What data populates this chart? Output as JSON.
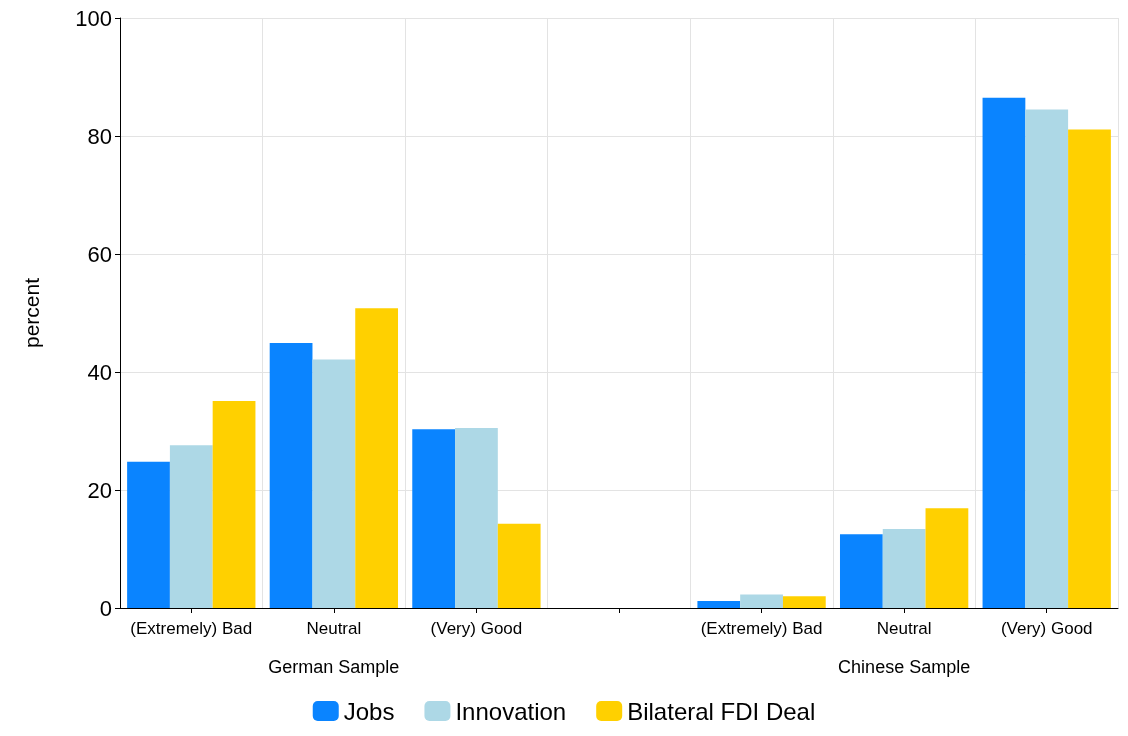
{
  "chart_data": {
    "type": "bar",
    "ylabel": "percent",
    "categories": [
      "(Extremely) Bad",
      "Neutral",
      "(Very) Good",
      null,
      "(Extremely) Bad",
      "Neutral",
      "(Very) Good"
    ],
    "series": [
      {
        "name": "Jobs",
        "color": "#0a84ff",
        "values": [
          24.8,
          44.9,
          30.3,
          null,
          1.2,
          12.5,
          86.5
        ]
      },
      {
        "name": "Innovation",
        "color": "#add8e6",
        "values": [
          27.6,
          42.1,
          30.5,
          null,
          2.3,
          13.4,
          84.5
        ]
      },
      {
        "name": "Bilateral FDI Deal",
        "color": "#ffd000",
        "values": [
          35.1,
          50.8,
          14.3,
          null,
          2.0,
          16.9,
          81.1
        ]
      }
    ],
    "annotations": [
      "German Sample",
      "Chinese Sample"
    ],
    "ylim": [
      0,
      100
    ],
    "yticks": [
      0,
      20,
      40,
      60,
      80,
      100
    ],
    "grid": true,
    "legend": "bottom"
  }
}
